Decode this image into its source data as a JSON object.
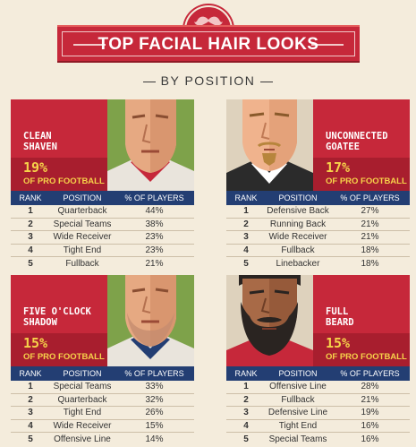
{
  "header": {
    "title": "TOP FACIAL HAIR LOOKS",
    "subtitle": "BY POSITION"
  },
  "table_headers": {
    "rank": "RANK",
    "position": "POSITION",
    "pct": "% OF PLAYERS"
  },
  "colors": {
    "red": "#c6283a",
    "navy": "#233e73",
    "green": "#7ea24a",
    "gold": "#f6d24a",
    "background": "#f4ecdc"
  },
  "looks": [
    {
      "name_line1": "CLEAN",
      "name_line2": "SHAVEN",
      "pct": "19%",
      "pct_label": "OF PRO FOOTBALL",
      "rows": [
        {
          "rank": "1",
          "position": "Quarterback",
          "pct": "44%"
        },
        {
          "rank": "2",
          "position": "Special Teams",
          "pct": "38%"
        },
        {
          "rank": "3",
          "position": "Wide Receiver",
          "pct": "23%"
        },
        {
          "rank": "4",
          "position": "Tight End",
          "pct": "23%"
        },
        {
          "rank": "5",
          "position": "Fullback",
          "pct": "21%"
        }
      ]
    },
    {
      "name_line1": "UNCONNECTED",
      "name_line2": "GOATEE",
      "pct": "17%",
      "pct_label": "OF PRO FOOTBALL",
      "rows": [
        {
          "rank": "1",
          "position": "Defensive Back",
          "pct": "27%"
        },
        {
          "rank": "2",
          "position": "Running Back",
          "pct": "21%"
        },
        {
          "rank": "3",
          "position": "Wide Receiver",
          "pct": "21%"
        },
        {
          "rank": "4",
          "position": "Fullback",
          "pct": "18%"
        },
        {
          "rank": "5",
          "position": "Linebacker",
          "pct": "18%"
        }
      ]
    },
    {
      "name_line1": "FIVE O'CLOCK",
      "name_line2": "SHADOW",
      "pct": "15%",
      "pct_label": "OF PRO FOOTBALL",
      "rows": [
        {
          "rank": "1",
          "position": "Special Teams",
          "pct": "33%"
        },
        {
          "rank": "2",
          "position": "Quarterback",
          "pct": "32%"
        },
        {
          "rank": "3",
          "position": "Tight End",
          "pct": "26%"
        },
        {
          "rank": "4",
          "position": "Wide Receiver",
          "pct": "15%"
        },
        {
          "rank": "5",
          "position": "Offensive Line",
          "pct": "14%"
        }
      ]
    },
    {
      "name_line1": "FULL",
      "name_line2": "BEARD",
      "pct": "15%",
      "pct_label": "OF PRO FOOTBALL",
      "rows": [
        {
          "rank": "1",
          "position": "Offensive Line",
          "pct": "28%"
        },
        {
          "rank": "2",
          "position": "Fullback",
          "pct": "21%"
        },
        {
          "rank": "3",
          "position": "Defensive Line",
          "pct": "19%"
        },
        {
          "rank": "4",
          "position": "Tight End",
          "pct": "16%"
        },
        {
          "rank": "5",
          "position": "Special Teams",
          "pct": "16%"
        }
      ]
    }
  ]
}
